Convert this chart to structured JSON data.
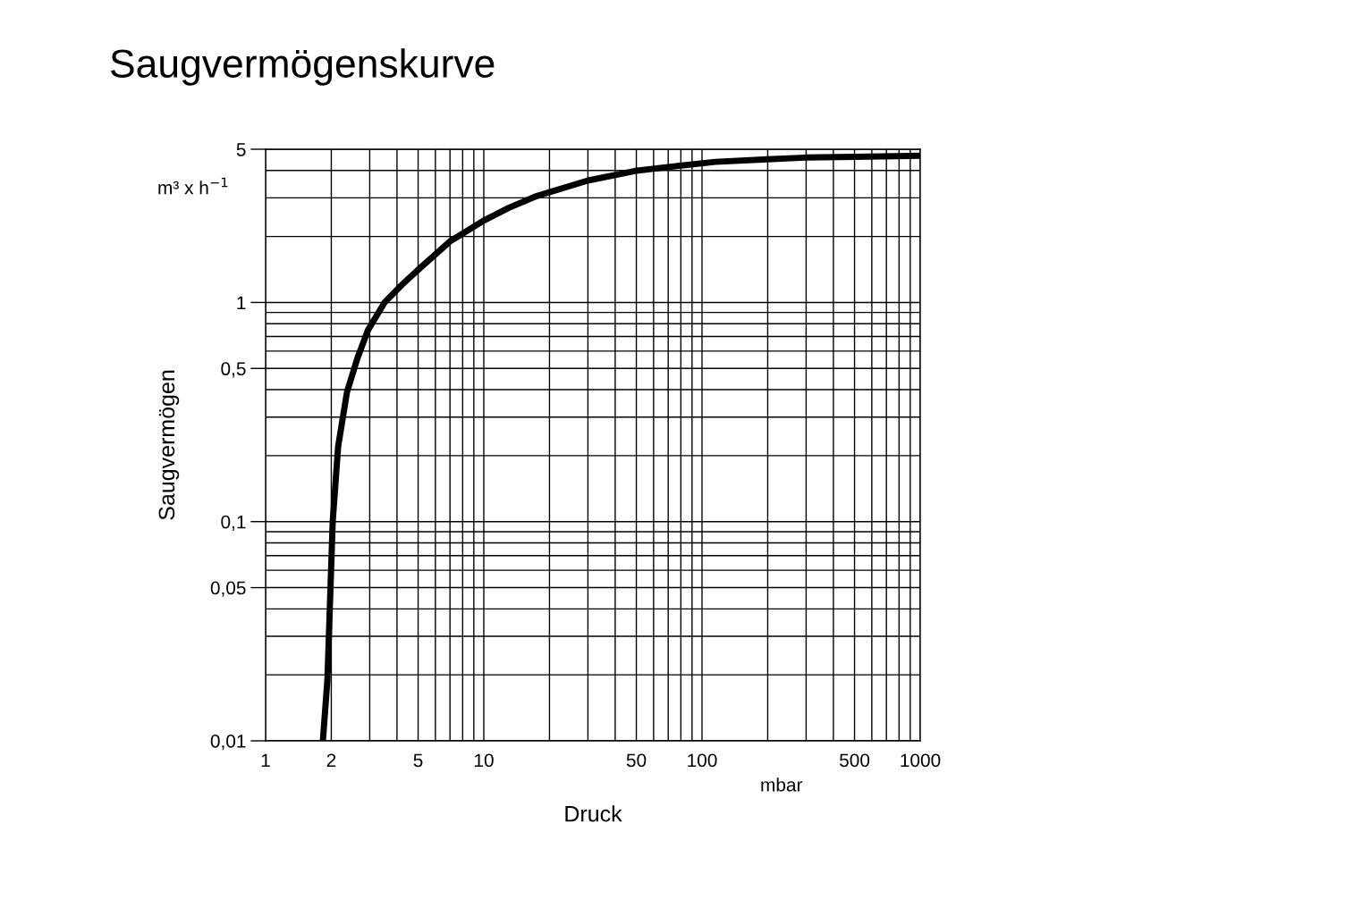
{
  "chart_data": {
    "type": "line",
    "title": "Saugvermögenskurve",
    "xlabel": "Druck",
    "ylabel": "Saugvermögen",
    "annotations": [
      "m³ x h$^{−1}$",
      "mbar"
    ],
    "log": "xy",
    "grid": true,
    "marker": "none",
    "line_style": "solid",
    "xlim": [
      1,
      1000
    ],
    "xticks": [
      1,
      2,
      5,
      10,
      50,
      100,
      500,
      1000
    ],
    "ylim": [
      0.01,
      5
    ],
    "yticks": [
      {
        "value": 0.01,
        "label": "0,01"
      },
      {
        "value": 0.05,
        "label": "0,05"
      },
      {
        "value": 0.1,
        "label": "0,1"
      },
      {
        "value": 0.5,
        "label": "0,5"
      },
      1,
      5
    ],
    "series": [
      {
        "color": "#000000",
        "x": [
          1.83,
          1.92,
          2.03,
          2.15,
          2.36,
          2.64,
          2.95,
          3.51,
          4.2,
          5.12,
          7,
          9.9,
          13,
          17.5,
          30,
          49.3,
          70,
          115,
          200,
          296,
          500,
          1000
        ],
        "values": [
          0.01,
          0.019,
          0.1,
          0.22,
          0.39,
          0.56,
          0.75,
          1,
          1.2,
          1.44,
          1.9,
          2.35,
          2.7,
          3.06,
          3.6,
          3.98,
          4.15,
          4.38,
          4.5,
          4.58,
          4.62,
          4.67
        ]
      }
    ]
  }
}
